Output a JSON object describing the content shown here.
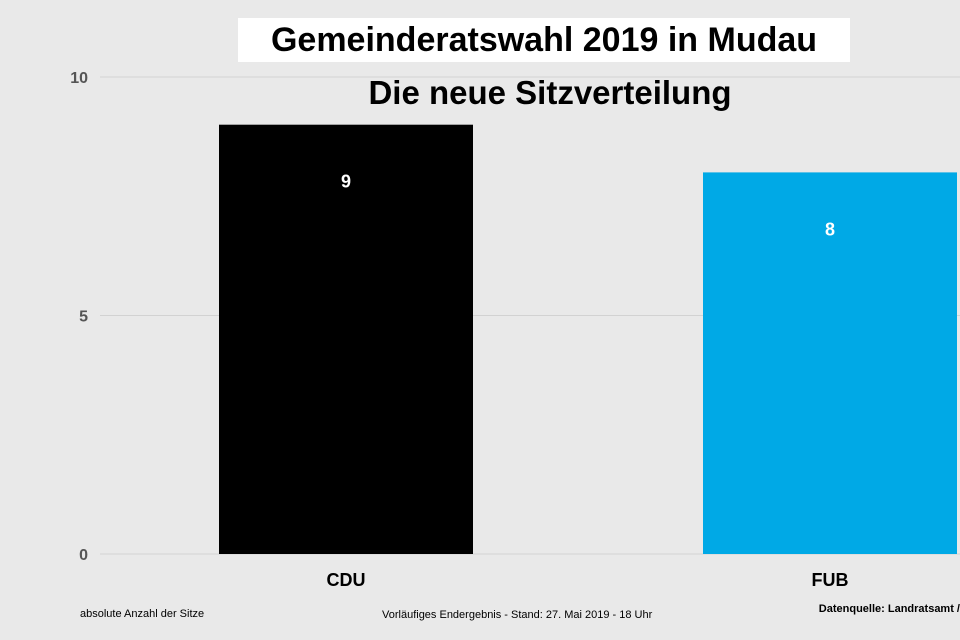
{
  "chart_data": {
    "type": "bar",
    "title": "Gemeinderatswahl 2019 in Mudau",
    "subtitle": "Die neue Sitzverteilung",
    "categories": [
      "CDU",
      "FUB"
    ],
    "values": [
      9,
      8
    ],
    "colors": [
      "#000000",
      "#00a9e6"
    ],
    "ylim": [
      0,
      10
    ],
    "yticks": [
      0,
      5,
      10
    ],
    "grid": true,
    "data_labels": true
  },
  "footer": {
    "left": "absolute Anzahl der Sitze",
    "middle": "Vorläufiges Endergebnis - Stand: 27. Mai 2019  - 18 Uhr",
    "right": "Datenquelle: Landratsamt /"
  }
}
